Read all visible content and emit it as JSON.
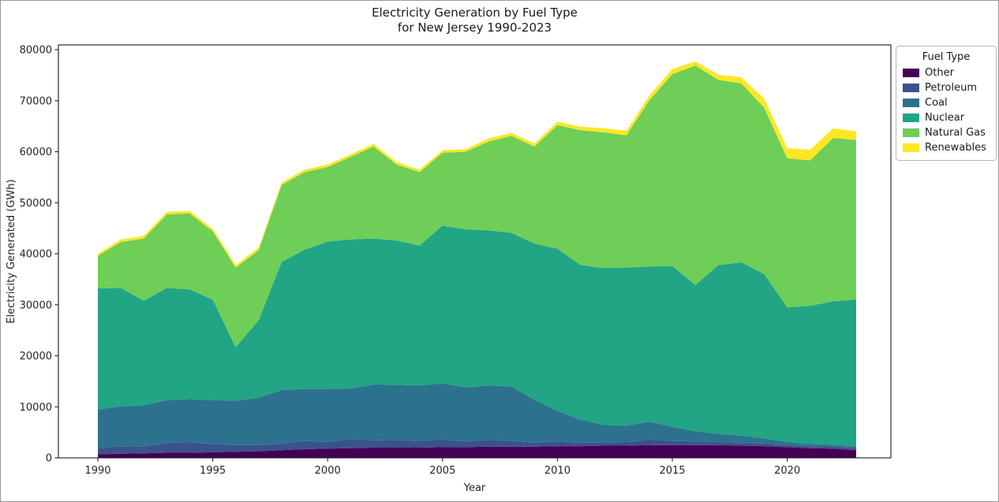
{
  "figure": {
    "title_line1": "Electricity Generation by Fuel Type",
    "title_line2": "for New Jersey 1990-2023",
    "xlabel": "Year",
    "ylabel": "Electricity Generated (GWh)"
  },
  "legend": {
    "title": "Fuel Type",
    "items": [
      {
        "label": "Other",
        "color": "#440154"
      },
      {
        "label": "Petroleum",
        "color": "#3b528b"
      },
      {
        "label": "Coal",
        "color": "#2c728e"
      },
      {
        "label": "Nuclear",
        "color": "#21a585"
      },
      {
        "label": "Natural Gas",
        "color": "#6ece58"
      },
      {
        "label": "Renewables",
        "color": "#fde725"
      }
    ]
  },
  "chart_data": {
    "type": "area",
    "stacked": true,
    "title": "Electricity Generation by Fuel Type for New Jersey 1990-2023",
    "xlabel": "Year",
    "ylabel": "Electricity Generated (GWh)",
    "ylim": [
      0,
      80000
    ],
    "grid": false,
    "legend_position": "outside upper right",
    "legend_title": "Fuel Type",
    "x": [
      1990,
      1991,
      1992,
      1993,
      1994,
      1995,
      1996,
      1997,
      1998,
      1999,
      2000,
      2001,
      2002,
      2003,
      2004,
      2005,
      2006,
      2007,
      2008,
      2009,
      2010,
      2011,
      2012,
      2013,
      2014,
      2015,
      2016,
      2017,
      2018,
      2019,
      2020,
      2021,
      2022,
      2023
    ],
    "x_ticks": [
      1990,
      1995,
      2000,
      2005,
      2010,
      2015,
      2020
    ],
    "y_ticks": [
      0,
      10000,
      20000,
      30000,
      40000,
      50000,
      60000,
      70000,
      80000
    ],
    "series": [
      {
        "name": "Other",
        "color": "#440154",
        "values": [
          700,
          800,
          900,
          1000,
          1000,
          1100,
          1200,
          1300,
          1500,
          1700,
          1800,
          1900,
          2000,
          2000,
          2000,
          2100,
          2100,
          2200,
          2200,
          2200,
          2300,
          2300,
          2400,
          2400,
          2500,
          2500,
          2500,
          2500,
          2400,
          2300,
          2100,
          1900,
          1800,
          1500
        ]
      },
      {
        "name": "Petroleum",
        "color": "#3b528b",
        "values": [
          1100,
          1500,
          1300,
          1900,
          2100,
          1600,
          1300,
          1200,
          1300,
          1600,
          1300,
          1800,
          1400,
          1500,
          1300,
          1500,
          1100,
          1300,
          1100,
          800,
          900,
          700,
          600,
          700,
          1100,
          800,
          700,
          600,
          500,
          500,
          400,
          400,
          400,
          400
        ]
      },
      {
        "name": "Coal",
        "color": "#2c728e",
        "values": [
          7700,
          7800,
          8100,
          8400,
          8400,
          8600,
          8700,
          9300,
          10500,
          10200,
          10400,
          9900,
          11000,
          10800,
          10900,
          11000,
          10600,
          10700,
          10700,
          8400,
          6000,
          4500,
          3500,
          3200,
          3500,
          2800,
          2000,
          1600,
          1500,
          1000,
          600,
          400,
          400,
          300
        ]
      },
      {
        "name": "Nuclear",
        "color": "#21a585",
        "values": [
          23700,
          23200,
          20500,
          22000,
          21500,
          19700,
          10500,
          15200,
          25100,
          27300,
          28900,
          29200,
          28600,
          28300,
          27400,
          30900,
          31000,
          30400,
          30100,
          30600,
          31800,
          30300,
          30700,
          31000,
          30400,
          31500,
          28650,
          33100,
          33900,
          32200,
          26400,
          27100,
          28100,
          28800
        ]
      },
      {
        "name": "Natural Gas",
        "color": "#6ece58",
        "values": [
          6400,
          9000,
          12200,
          14400,
          14900,
          13400,
          15600,
          13700,
          15100,
          15200,
          14600,
          16200,
          18000,
          14900,
          14400,
          14300,
          15200,
          17400,
          19000,
          19000,
          24200,
          26400,
          26600,
          25900,
          32600,
          37600,
          43050,
          36300,
          35100,
          32600,
          29200,
          28500,
          32000,
          31300
        ]
      },
      {
        "name": "Renewables",
        "color": "#fde725",
        "values": [
          400,
          500,
          500,
          500,
          500,
          500,
          500,
          500,
          500,
          500,
          500,
          500,
          500,
          500,
          500,
          500,
          500,
          600,
          600,
          600,
          700,
          700,
          800,
          900,
          900,
          1000,
          800,
          1000,
          1200,
          1800,
          2000,
          2100,
          1900,
          1700
        ]
      }
    ]
  }
}
